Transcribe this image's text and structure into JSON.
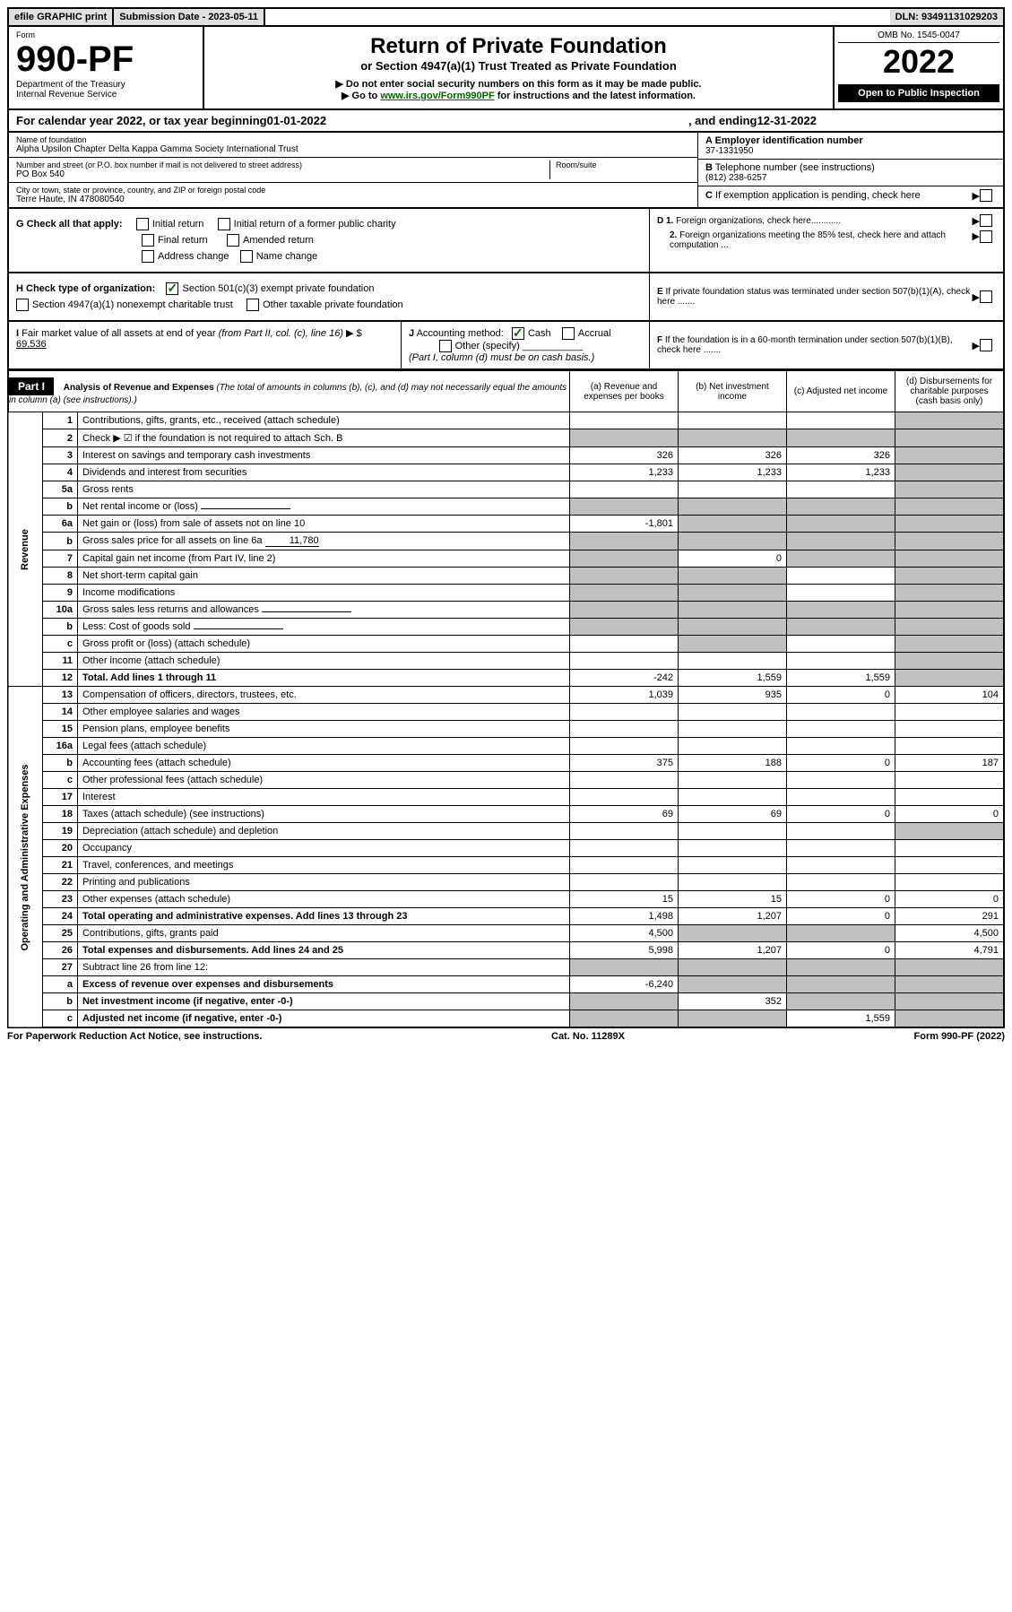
{
  "topbar": {
    "efile": "efile GRAPHIC print",
    "submission_label": "Submission Date - 2023-05-11",
    "dln": "DLN: 93491131029203"
  },
  "header": {
    "form_label": "Form",
    "form_number": "990-PF",
    "dept": "Department of the Treasury",
    "irs": "Internal Revenue Service",
    "title": "Return of Private Foundation",
    "subtitle": "or Section 4947(a)(1) Trust Treated as Private Foundation",
    "note1": "▶ Do not enter social security numbers on this form as it may be made public.",
    "note2_pre": "▶ Go to ",
    "note2_link": "www.irs.gov/Form990PF",
    "note2_post": " for instructions and the latest information.",
    "omb": "OMB No. 1545-0047",
    "year": "2022",
    "open": "Open to Public Inspection"
  },
  "calendar": {
    "pre": "For calendar year 2022, or tax year beginning ",
    "begin": "01-01-2022",
    "mid": ", and ending ",
    "end": "12-31-2022"
  },
  "entity": {
    "name_label": "Name of foundation",
    "name": "Alpha Upsilon Chapter Delta Kappa Gamma Society International Trust",
    "addr_label": "Number and street (or P.O. box number if mail is not delivered to street address)",
    "addr": "PO Box 540",
    "room_label": "Room/suite",
    "city_label": "City or town, state or province, country, and ZIP or foreign postal code",
    "city": "Terre Haute, IN  478080540",
    "ein_label": "A Employer identification number",
    "ein": "37-1331950",
    "phone_label": "B Telephone number (see instructions)",
    "phone": "(812) 238-6257",
    "c_label": "C If exemption application is pending, check here"
  },
  "checks": {
    "g_label": "G Check all that apply:",
    "g_opts": [
      "Initial return",
      "Initial return of a former public charity",
      "Final return",
      "Amended return",
      "Address change",
      "Name change"
    ],
    "h_label": "H Check type of organization:",
    "h1": "Section 501(c)(3) exempt private foundation",
    "h2": "Section 4947(a)(1) nonexempt charitable trust",
    "h3": "Other taxable private foundation",
    "d1": "D 1. Foreign organizations, check here............",
    "d2": "2. Foreign organizations meeting the 85% test, check here and attach computation ...",
    "e": "E  If private foundation status was terminated under section 507(b)(1)(A), check here .......",
    "i_label": "I Fair market value of all assets at end of year (from Part II, col. (c), line 16)",
    "i_val": "69,536",
    "j_label": "J Accounting method:",
    "j1": "Cash",
    "j2": "Accrual",
    "j3": "Other (specify)",
    "j_note": "(Part I, column (d) must be on cash basis.)",
    "f": "F  If the foundation is in a 60-month termination under section 507(b)(1)(B), check here ......."
  },
  "part1": {
    "label": "Part I",
    "title": "Analysis of Revenue and Expenses ",
    "title_note": "(The total of amounts in columns (b), (c), and (d) may not necessarily equal the amounts in column (a) (see instructions).)",
    "col_a": "(a)   Revenue and expenses per books",
    "col_b": "(b)   Net investment income",
    "col_c": "(c)   Adjusted net income",
    "col_d": "(d)  Disbursements for charitable purposes (cash basis only)"
  },
  "sections": {
    "revenue": "Revenue",
    "ops": "Operating and Administrative Expenses"
  },
  "rows": [
    {
      "n": "1",
      "d": "Contributions, gifts, grants, etc., received (attach schedule)",
      "a": "",
      "b": "",
      "c": "",
      "dd": "",
      "shade_d": true
    },
    {
      "n": "2",
      "d": "Check ▶ ☑ if the foundation is not required to attach Sch. B",
      "a": "",
      "b": "",
      "c": "",
      "dd": "",
      "shade_all": true,
      "bold_not": true
    },
    {
      "n": "3",
      "d": "Interest on savings and temporary cash investments",
      "a": "326",
      "b": "326",
      "c": "326",
      "dd": "",
      "shade_d": true
    },
    {
      "n": "4",
      "d": "Dividends and interest from securities",
      "a": "1,233",
      "b": "1,233",
      "c": "1,233",
      "dd": "",
      "shade_d": true
    },
    {
      "n": "5a",
      "d": "Gross rents",
      "a": "",
      "b": "",
      "c": "",
      "dd": "",
      "shade_d": true
    },
    {
      "n": "b",
      "d": "Net rental income or (loss)",
      "a": "",
      "b": "",
      "c": "",
      "dd": "",
      "shade_all": true,
      "inline": true
    },
    {
      "n": "6a",
      "d": "Net gain or (loss) from sale of assets not on line 10",
      "a": "-1,801",
      "b": "",
      "c": "",
      "dd": "",
      "shade_bcd": true
    },
    {
      "n": "b",
      "d": "Gross sales price for all assets on line 6a",
      "a": "",
      "b": "",
      "c": "",
      "dd": "",
      "shade_all": true,
      "inline": true,
      "inline_val": "11,780"
    },
    {
      "n": "7",
      "d": "Capital gain net income (from Part IV, line 2)",
      "a": "",
      "b": "0",
      "c": "",
      "dd": "",
      "shade_a": true,
      "shade_cd": true
    },
    {
      "n": "8",
      "d": "Net short-term capital gain",
      "a": "",
      "b": "",
      "c": "",
      "dd": "",
      "shade_ab": true,
      "shade_d": true
    },
    {
      "n": "9",
      "d": "Income modifications",
      "a": "",
      "b": "",
      "c": "",
      "dd": "",
      "shade_ab": true,
      "shade_d": true
    },
    {
      "n": "10a",
      "d": "Gross sales less returns and allowances",
      "a": "",
      "b": "",
      "c": "",
      "dd": "",
      "shade_all": true,
      "inline": true
    },
    {
      "n": "b",
      "d": "Less: Cost of goods sold",
      "a": "",
      "b": "",
      "c": "",
      "dd": "",
      "shade_all": true,
      "inline": true
    },
    {
      "n": "c",
      "d": "Gross profit or (loss) (attach schedule)",
      "a": "",
      "b": "",
      "c": "",
      "dd": "",
      "shade_b": true,
      "shade_d": true
    },
    {
      "n": "11",
      "d": "Other income (attach schedule)",
      "a": "",
      "b": "",
      "c": "",
      "dd": "",
      "shade_d": true
    },
    {
      "n": "12",
      "d": "Total. Add lines 1 through 11",
      "a": "-242",
      "b": "1,559",
      "c": "1,559",
      "dd": "",
      "bold": true,
      "shade_d": true
    }
  ],
  "ops_rows": [
    {
      "n": "13",
      "d": "Compensation of officers, directors, trustees, etc.",
      "a": "1,039",
      "b": "935",
      "c": "0",
      "dd": "104"
    },
    {
      "n": "14",
      "d": "Other employee salaries and wages",
      "a": "",
      "b": "",
      "c": "",
      "dd": ""
    },
    {
      "n": "15",
      "d": "Pension plans, employee benefits",
      "a": "",
      "b": "",
      "c": "",
      "dd": ""
    },
    {
      "n": "16a",
      "d": "Legal fees (attach schedule)",
      "a": "",
      "b": "",
      "c": "",
      "dd": ""
    },
    {
      "n": "b",
      "d": "Accounting fees (attach schedule)",
      "a": "375",
      "b": "188",
      "c": "0",
      "dd": "187"
    },
    {
      "n": "c",
      "d": "Other professional fees (attach schedule)",
      "a": "",
      "b": "",
      "c": "",
      "dd": ""
    },
    {
      "n": "17",
      "d": "Interest",
      "a": "",
      "b": "",
      "c": "",
      "dd": ""
    },
    {
      "n": "18",
      "d": "Taxes (attach schedule) (see instructions)",
      "a": "69",
      "b": "69",
      "c": "0",
      "dd": "0"
    },
    {
      "n": "19",
      "d": "Depreciation (attach schedule) and depletion",
      "a": "",
      "b": "",
      "c": "",
      "dd": "",
      "shade_d": true
    },
    {
      "n": "20",
      "d": "Occupancy",
      "a": "",
      "b": "",
      "c": "",
      "dd": ""
    },
    {
      "n": "21",
      "d": "Travel, conferences, and meetings",
      "a": "",
      "b": "",
      "c": "",
      "dd": ""
    },
    {
      "n": "22",
      "d": "Printing and publications",
      "a": "",
      "b": "",
      "c": "",
      "dd": ""
    },
    {
      "n": "23",
      "d": "Other expenses (attach schedule)",
      "a": "15",
      "b": "15",
      "c": "0",
      "dd": "0"
    },
    {
      "n": "24",
      "d": "Total operating and administrative expenses. Add lines 13 through 23",
      "a": "1,498",
      "b": "1,207",
      "c": "0",
      "dd": "291",
      "bold": true
    },
    {
      "n": "25",
      "d": "Contributions, gifts, grants paid",
      "a": "4,500",
      "b": "",
      "c": "",
      "dd": "4,500",
      "shade_bc": true
    },
    {
      "n": "26",
      "d": "Total expenses and disbursements. Add lines 24 and 25",
      "a": "5,998",
      "b": "1,207",
      "c": "0",
      "dd": "4,791",
      "bold": true
    }
  ],
  "bottom_rows": [
    {
      "n": "27",
      "d": "Subtract line 26 from line 12:",
      "a": "",
      "b": "",
      "c": "",
      "dd": "",
      "shade_all": true
    },
    {
      "n": "a",
      "d": "Excess of revenue over expenses and disbursements",
      "a": "-6,240",
      "b": "",
      "c": "",
      "dd": "",
      "bold": true,
      "shade_bcd": true
    },
    {
      "n": "b",
      "d": "Net investment income (if negative, enter -0-)",
      "a": "",
      "b": "352",
      "c": "",
      "dd": "",
      "bold": true,
      "shade_a": true,
      "shade_cd": true
    },
    {
      "n": "c",
      "d": "Adjusted net income (if negative, enter -0-)",
      "a": "",
      "b": "",
      "c": "1,559",
      "dd": "",
      "bold": true,
      "shade_ab": true,
      "shade_d": true
    }
  ],
  "footer": {
    "left": "For Paperwork Reduction Act Notice, see instructions.",
    "mid": "Cat. No. 11289X",
    "right": "Form 990-PF (2022)"
  }
}
